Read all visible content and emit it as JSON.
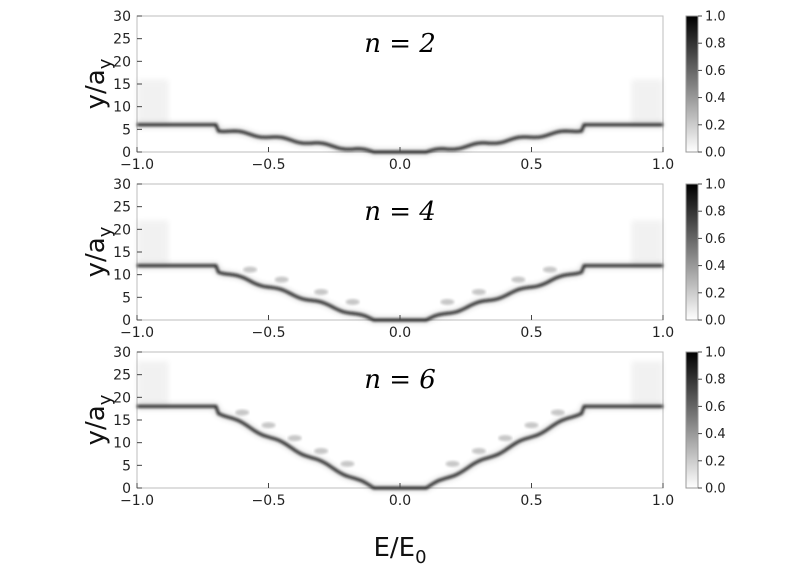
{
  "chart_data": [
    {
      "type": "heatmap",
      "panel_label": "n = 2",
      "n": 2,
      "xlim": [
        -1.0,
        1.0
      ],
      "ylim": [
        0,
        30
      ],
      "x_ticks": [
        "−1.0",
        "−0.5",
        "0.0",
        "0.5",
        "1.0"
      ],
      "x_tick_values": [
        -1.0,
        -0.5,
        0.0,
        0.5,
        1.0
      ],
      "y_ticks": [
        "0",
        "5",
        "10",
        "15",
        "20",
        "25",
        "30"
      ],
      "y_tick_values": [
        0,
        5,
        10,
        15,
        20,
        25,
        30
      ],
      "ylabel": "y/a_y",
      "plateau_y": 6,
      "colorbar": {
        "range": [
          0.0,
          1.0
        ],
        "ticks": [
          "0.0",
          "0.2",
          "0.4",
          "0.6",
          "0.8",
          "1.0"
        ],
        "colors": [
          "#ffffff",
          "#000000"
        ]
      }
    },
    {
      "type": "heatmap",
      "panel_label": "n = 4",
      "n": 4,
      "xlim": [
        -1.0,
        1.0
      ],
      "ylim": [
        0,
        30
      ],
      "x_ticks": [
        "−1.0",
        "−0.5",
        "0.0",
        "0.5",
        "1.0"
      ],
      "x_tick_values": [
        -1.0,
        -0.5,
        0.0,
        0.5,
        1.0
      ],
      "y_ticks": [
        "0",
        "5",
        "10",
        "15",
        "20",
        "25",
        "30"
      ],
      "y_tick_values": [
        0,
        5,
        10,
        15,
        20,
        25,
        30
      ],
      "ylabel": "y/a_y",
      "plateau_y": 12,
      "colorbar": {
        "range": [
          0.0,
          1.0
        ],
        "ticks": [
          "0.0",
          "0.2",
          "0.4",
          "0.6",
          "0.8",
          "1.0"
        ],
        "colors": [
          "#ffffff",
          "#000000"
        ]
      }
    },
    {
      "type": "heatmap",
      "panel_label": "n = 6",
      "n": 6,
      "xlim": [
        -1.0,
        1.0
      ],
      "ylim": [
        0,
        30
      ],
      "x_ticks": [
        "−1.0",
        "−0.5",
        "0.0",
        "0.5",
        "1.0"
      ],
      "x_tick_values": [
        -1.0,
        -0.5,
        0.0,
        0.5,
        1.0
      ],
      "y_ticks": [
        "0",
        "5",
        "10",
        "15",
        "20",
        "25",
        "30"
      ],
      "y_tick_values": [
        0,
        5,
        10,
        15,
        20,
        25,
        30
      ],
      "ylabel": "y/a_y",
      "plateau_y": 18,
      "colorbar": {
        "range": [
          0.0,
          1.0
        ],
        "ticks": [
          "0.0",
          "0.2",
          "0.4",
          "0.6",
          "0.8",
          "1.0"
        ],
        "colors": [
          "#ffffff",
          "#000000"
        ]
      }
    }
  ],
  "xlabel_main": "E/E",
  "xlabel_sub": "0",
  "ylabel_main": "y/a",
  "ylabel_sub": "y"
}
